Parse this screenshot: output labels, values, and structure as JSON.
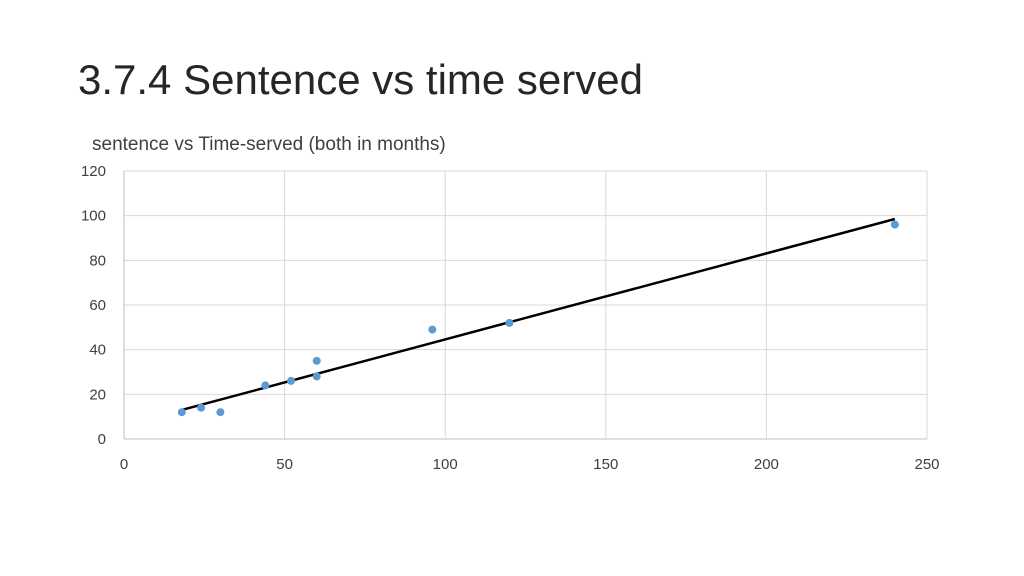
{
  "slide": {
    "title": "3.7.4 Sentence vs time served"
  },
  "chart_data": {
    "type": "scatter",
    "title": "sentence vs Time-served (both in months)",
    "xlabel": "",
    "ylabel": "",
    "xlim": [
      0,
      250
    ],
    "ylim": [
      0,
      120
    ],
    "xticks": [
      0,
      50,
      100,
      150,
      200,
      250
    ],
    "yticks": [
      0,
      20,
      40,
      60,
      80,
      100,
      120
    ],
    "grid": true,
    "legend": "none",
    "series": [
      {
        "color": "#5B9BD5",
        "points": [
          {
            "x": 18,
            "y": 12
          },
          {
            "x": 24,
            "y": 14
          },
          {
            "x": 30,
            "y": 12
          },
          {
            "x": 44,
            "y": 24
          },
          {
            "x": 52,
            "y": 26
          },
          {
            "x": 60,
            "y": 28
          },
          {
            "x": 60,
            "y": 35
          },
          {
            "x": 96,
            "y": 49
          },
          {
            "x": 120,
            "y": 52
          },
          {
            "x": 240,
            "y": 96
          }
        ]
      }
    ],
    "trendline": {
      "type": "linear",
      "color": "#000000",
      "start": {
        "x": 18,
        "y": 13
      },
      "end": {
        "x": 240,
        "y": 98.5
      }
    }
  }
}
